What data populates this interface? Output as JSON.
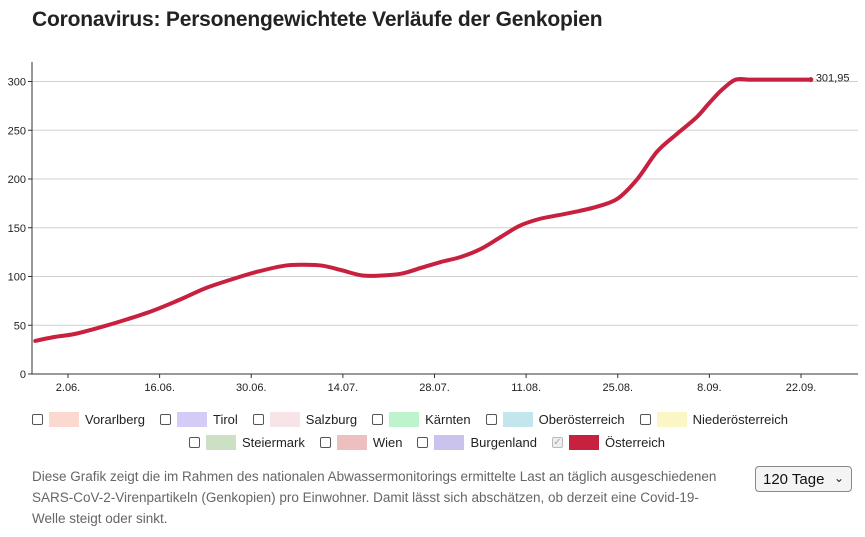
{
  "title": "Coronavirus: Personengewichtete Verläufe der Genkopien",
  "chart_data": {
    "type": "line",
    "title": "Coronavirus: Personengewichtete Verläufe der Genkopien",
    "xlabel": "",
    "ylabel": "",
    "ylim": [
      0,
      320
    ],
    "yticks": [
      0,
      50,
      100,
      150,
      200,
      250,
      300
    ],
    "grid": true,
    "x_ticks": [
      "2.06.",
      "16.06.",
      "30.06.",
      "14.07.",
      "28.07.",
      "11.08.",
      "25.08.",
      "8.09.",
      "22.09."
    ],
    "x_ticks_day_index": [
      0,
      14,
      28,
      42,
      56,
      70,
      84,
      98,
      112
    ],
    "series": [
      {
        "name": "Österreich",
        "color": "#c8203f",
        "x": [
          -5,
          -2,
          1,
          5,
          9,
          13,
          17,
          21,
          25,
          29,
          33,
          36,
          39,
          42,
          45,
          48,
          51,
          54,
          57,
          60,
          63,
          66,
          69,
          72,
          75,
          78,
          81,
          84,
          87,
          90,
          93,
          96,
          98,
          100,
          102,
          104,
          106,
          108,
          110,
          112,
          113.5
        ],
        "values": [
          34,
          38,
          41,
          48,
          56,
          65,
          76,
          88,
          97,
          105,
          111,
          112,
          111,
          106,
          101,
          101,
          103,
          109,
          115,
          120,
          128,
          140,
          152,
          159,
          163,
          167,
          172,
          180,
          200,
          228,
          246,
          263,
          278,
          292,
          301.95,
          301.95,
          301.95,
          301.95,
          301.95,
          301.95,
          301.95
        ],
        "last_label": "301,95"
      }
    ],
    "legend": [
      {
        "name": "Vorarlberg",
        "color": "#fbd9cf",
        "checked": false
      },
      {
        "name": "Tirol",
        "color": "#d4ccf6",
        "checked": false
      },
      {
        "name": "Salzburg",
        "color": "#f6e4e6",
        "checked": false
      },
      {
        "name": "Kärnten",
        "color": "#bdf4ce",
        "checked": false
      },
      {
        "name": "Oberösterreich",
        "color": "#c3e6ec",
        "checked": false
      },
      {
        "name": "Niederösterreich",
        "color": "#fbf6c6",
        "checked": false
      },
      {
        "name": "Steiermark",
        "color": "#cde0c4",
        "checked": false
      },
      {
        "name": "Wien",
        "color": "#edbfbf",
        "checked": false
      },
      {
        "name": "Burgenland",
        "color": "#c9c3ee",
        "checked": false
      },
      {
        "name": "Österreich",
        "color": "#c8203f",
        "checked": true
      }
    ],
    "legend_placement": "bottom"
  },
  "description": "Diese Grafik zeigt die im Rahmen des nationalen Abwassermonitorings ermittelte Last an täglich ausgeschiedenen SARS-CoV-2-Virenpartikeln (Genkopien) pro Einwohner. Damit lässt sich abschätzen, ob derzeit eine Covid-19-Welle steigt oder sinkt.",
  "range_select": {
    "value": "120 Tage",
    "options": [
      "120 Tage"
    ]
  }
}
